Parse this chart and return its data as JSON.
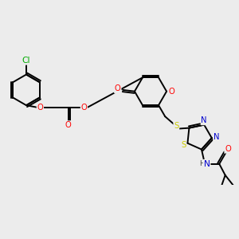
{
  "bg_color": "#ececec",
  "atom_colors": {
    "C": "#000000",
    "O": "#ff0000",
    "N": "#0000cd",
    "S": "#cccc00",
    "Cl": "#00aa00",
    "H": "#444444"
  },
  "bond_color": "#000000",
  "bond_width": 1.4,
  "dbo": 0.06,
  "font_size": 7.2
}
